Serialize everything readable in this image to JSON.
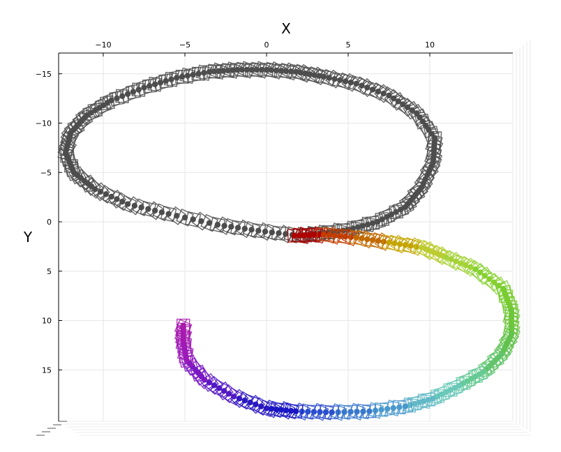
{
  "chart_data": {
    "type": "line",
    "title": "",
    "xlabel": "X",
    "ylabel": "Y",
    "xlim": [
      -12.6,
      15.0
    ],
    "ylim": [
      -16.5,
      20.5
    ],
    "y_inverted": true,
    "x_ticks": [
      -10,
      -5,
      0,
      5,
      10
    ],
    "y_ticks": [
      -15,
      -10,
      -5,
      0,
      5,
      10,
      15
    ],
    "grid": true,
    "series": [
      {
        "color": "#4d4d4d",
        "x": [
          2,
          -0.5,
          -3,
          -6,
          -8.5,
          -10.5,
          -11.8,
          -12.3,
          -12,
          -11,
          -9.5,
          -7.5,
          -5.5,
          -3.5,
          -1.8,
          0,
          1.8,
          3.5,
          5.5,
          7.5,
          9.2,
          10.3,
          10.2,
          9.5,
          8.5,
          6.8,
          5,
          3.2,
          2
        ],
        "y": [
          1.4,
          0.9,
          0.3,
          -0.8,
          -1.8,
          -3.3,
          -5,
          -7,
          -9,
          -10.8,
          -12.3,
          -13.6,
          -14.6,
          -15.2,
          -15.4,
          -15.4,
          -15.2,
          -14.7,
          -14,
          -12.8,
          -11,
          -8.5,
          -6,
          -3.5,
          -1.5,
          0,
          0.8,
          1.2,
          1.4
        ]
      },
      {
        "color": "gradient",
        "x": [
          1.7,
          3.5,
          5.5,
          7.5,
          9.5,
          11,
          12.8,
          14.5,
          15,
          15,
          14.4,
          13.3,
          11.8,
          10.2,
          8.5,
          6.3,
          4,
          1.8,
          0,
          -2,
          -3.8,
          -4.9,
          -5.1,
          -5.1
        ],
        "y": [
          1.4,
          1.3,
          1.6,
          2.1,
          2.6,
          3.6,
          4.8,
          6.8,
          9,
          11.4,
          13.4,
          15.2,
          16.6,
          17.9,
          18.7,
          19.2,
          19.3,
          19.2,
          18.9,
          17.7,
          16,
          14,
          12,
          10.5
        ],
        "colors": [
          "#b00000",
          "#c43c00",
          "#c26a00",
          "#c4a500",
          "#bccc30",
          "#a4d338",
          "#86d130",
          "#78cc30",
          "#6ec63a",
          "#62c24c",
          "#62c46a",
          "#66ca94",
          "#6ac8b8",
          "#62b8c6",
          "#4a98cc",
          "#3878cc",
          "#2b4fcc",
          "#1a16c4",
          "#2a18c0",
          "#5218c4",
          "#7a18c4",
          "#9c1ab8",
          "#a61ab0",
          "#a91aab"
        ]
      }
    ]
  }
}
